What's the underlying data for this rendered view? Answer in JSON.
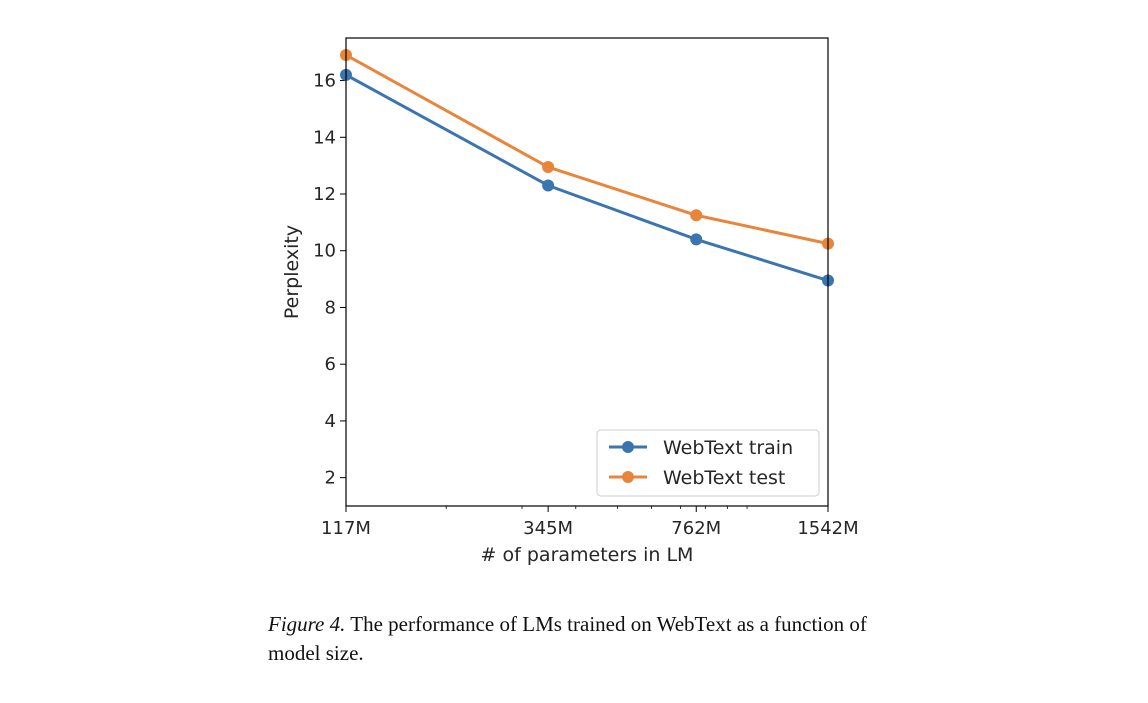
{
  "chart_data": {
    "type": "line",
    "title": "",
    "xlabel": "# of parameters in LM",
    "ylabel": "Perplexity",
    "x_scale": "log",
    "x": [
      117,
      345,
      762,
      1542
    ],
    "x_tick_labels": [
      "117M",
      "345M",
      "762M",
      "1542M"
    ],
    "x_unit": "M parameters",
    "ylim": [
      1.0,
      17.5
    ],
    "xlim": [
      117,
      1542
    ],
    "y_ticks": [
      2,
      4,
      6,
      8,
      10,
      12,
      14,
      16
    ],
    "grid": false,
    "legend_position": "lower-right",
    "series": [
      {
        "name": "WebText train",
        "color": "#3a75b0",
        "values": [
          16.2,
          12.3,
          10.4,
          8.95
        ]
      },
      {
        "name": "WebText test",
        "color": "#e8853a",
        "values": [
          16.9,
          12.95,
          11.25,
          10.25
        ]
      }
    ]
  },
  "caption": {
    "label": "Figure 4.",
    "text": " The performance of LMs trained on WebText as a function of model size."
  }
}
